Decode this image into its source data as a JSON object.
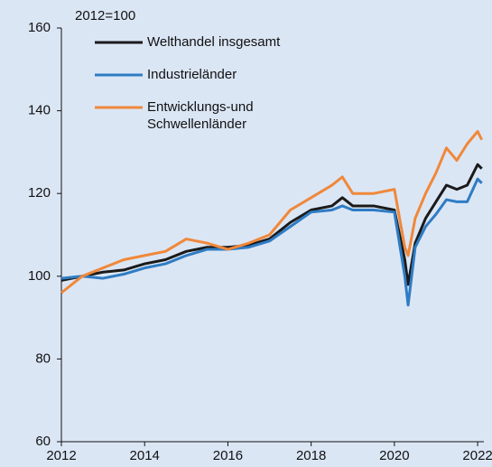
{
  "chart_data": {
    "type": "line",
    "annotation": "2012=100",
    "x": [
      2012.0,
      2012.5,
      2013.0,
      2013.5,
      2014.0,
      2014.5,
      2015.0,
      2015.5,
      2016.0,
      2016.5,
      2017.0,
      2017.5,
      2018.0,
      2018.5,
      2018.75,
      2019.0,
      2019.5,
      2020.0,
      2020.25,
      2020.33,
      2020.5,
      2020.75,
      2021.0,
      2021.25,
      2021.5,
      2021.75,
      2022.0,
      2022.1
    ],
    "series": [
      {
        "name": "Welthandel insgesamt",
        "color": "#1a1a1a",
        "values": [
          99,
          100,
          101,
          101.5,
          103,
          104,
          106,
          107,
          107,
          107.5,
          109,
          113,
          116,
          117,
          119,
          117,
          117,
          116,
          104,
          98,
          108,
          114,
          118,
          122,
          121,
          122,
          127,
          126
        ]
      },
      {
        "name": "Industrieländer",
        "color": "#2f7cc4",
        "values": [
          99.5,
          100,
          99.5,
          100.5,
          102,
          103,
          105,
          106.5,
          106.5,
          107,
          108.5,
          112,
          115.5,
          116,
          117,
          116,
          116,
          115.5,
          100,
          93,
          107,
          112,
          115,
          118.5,
          118,
          118,
          123.5,
          122.5
        ]
      },
      {
        "name": "Entwicklungs-und\nSchwellenländer",
        "color": "#f0883a",
        "values": [
          96,
          100,
          102,
          104,
          105,
          106,
          109,
          108,
          106.5,
          108,
          110,
          116,
          119,
          122,
          124,
          120,
          120,
          121,
          107,
          105,
          114,
          120,
          125,
          131,
          128,
          132,
          135,
          133
        ]
      }
    ],
    "xlim": [
      2012,
      2022.15
    ],
    "xticks": [
      2012,
      2014,
      2016,
      2018,
      2020,
      2022
    ],
    "ylim": [
      60,
      160
    ],
    "yticks": [
      60,
      80,
      100,
      120,
      140,
      160
    ],
    "grid": false
  }
}
